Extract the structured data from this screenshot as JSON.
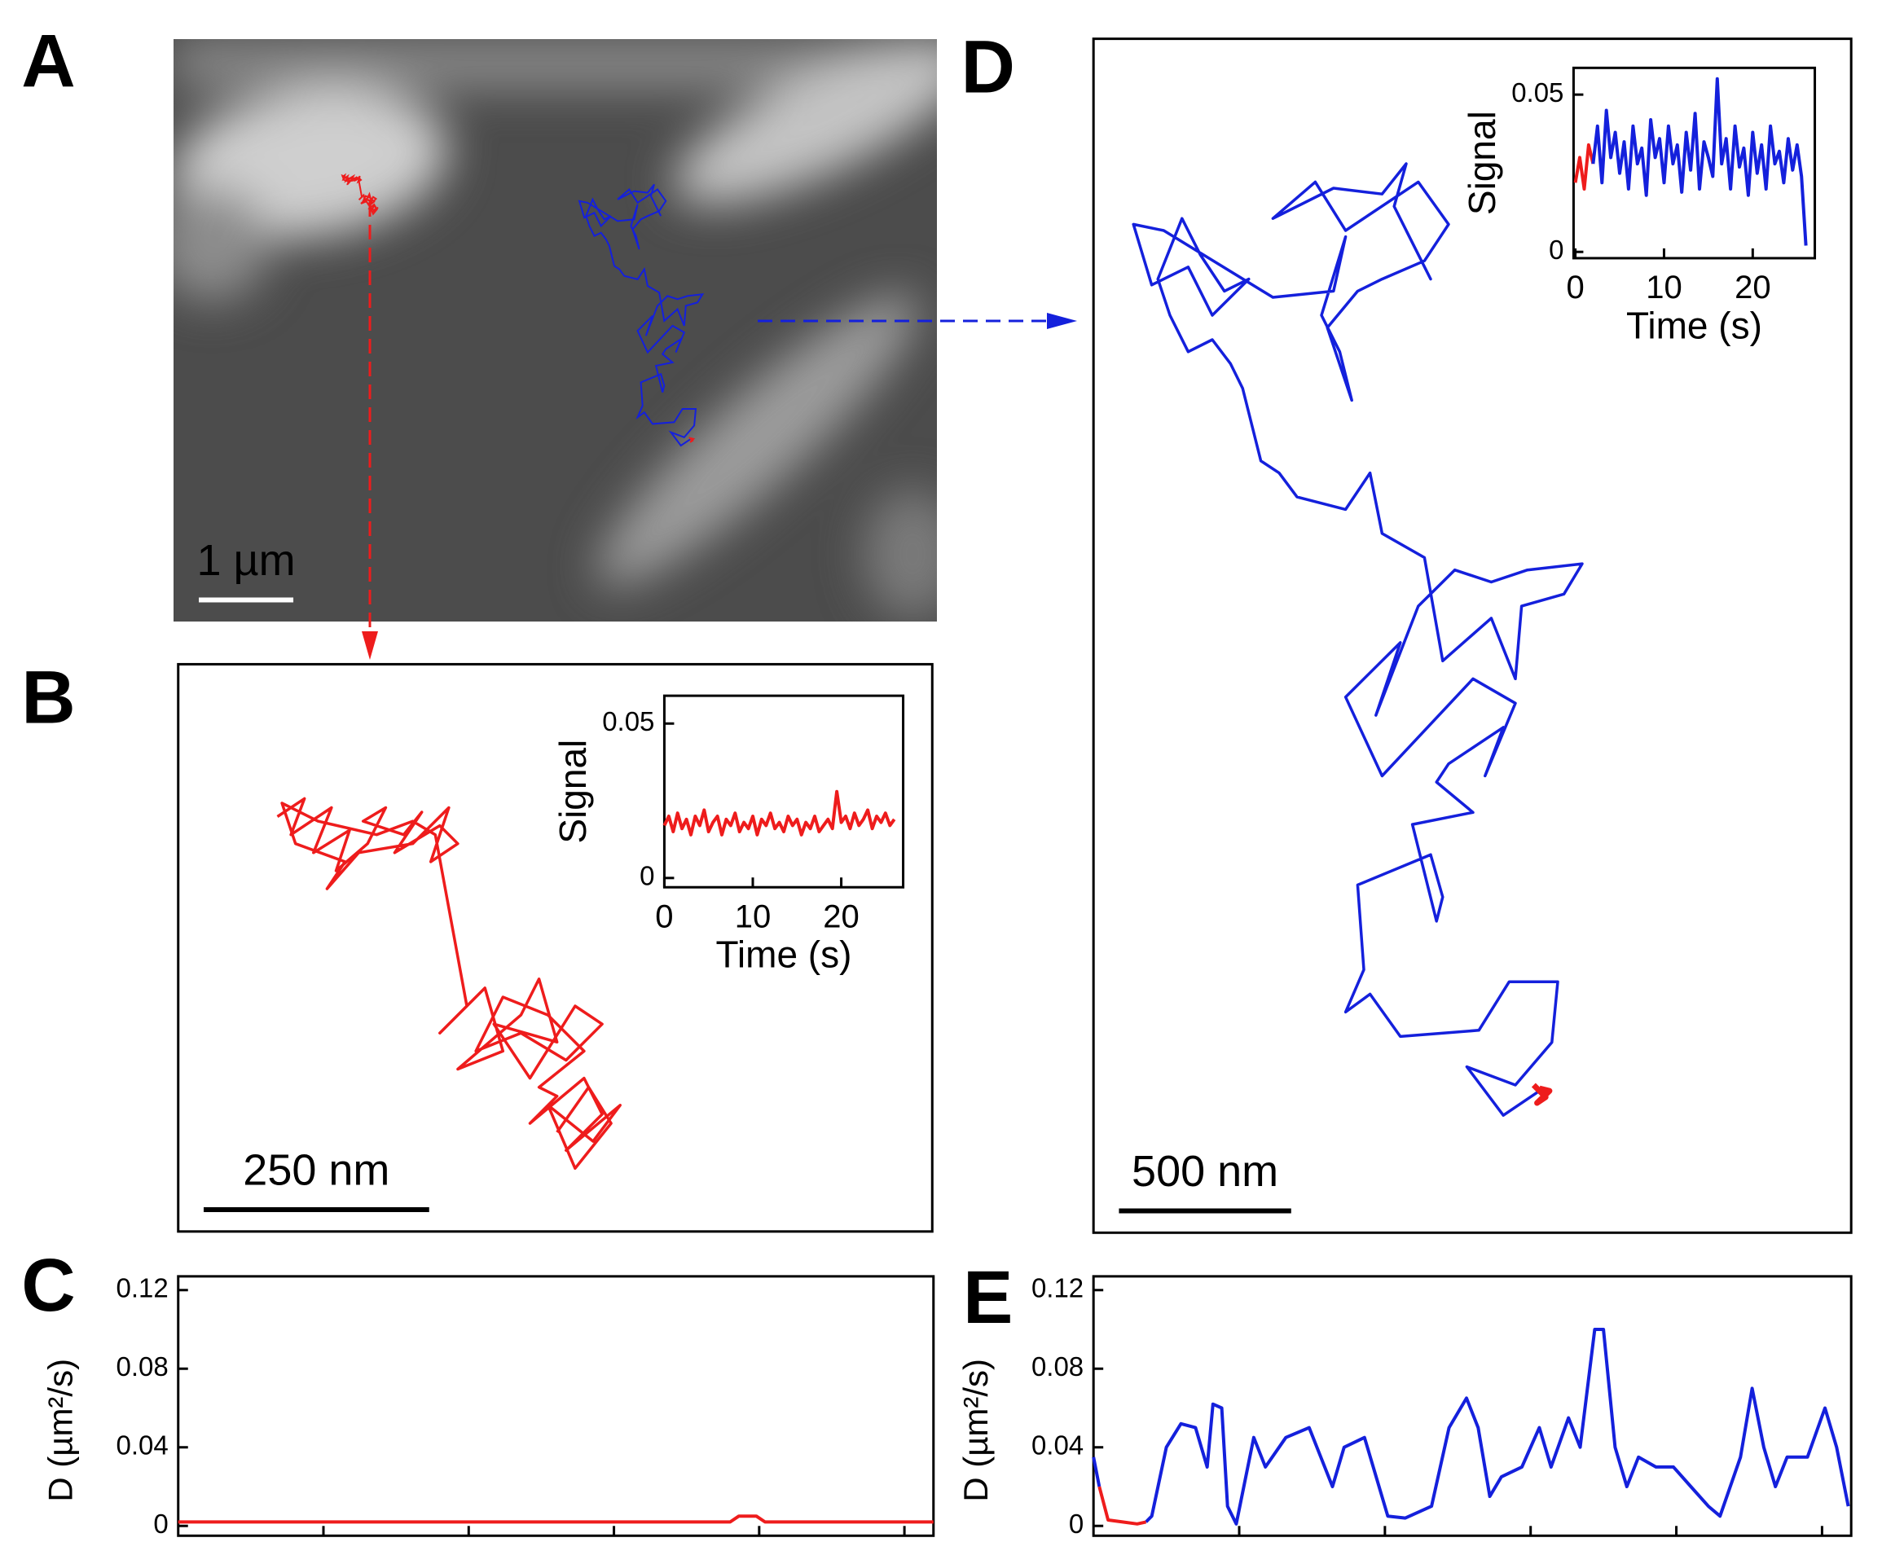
{
  "chart_data": [
    {
      "type": "image",
      "panel_label": "A",
      "xlim": [
        0,
        8080
      ],
      "ylim": [
        0,
        6170
      ],
      "scale_bar": {
        "value": 1000,
        "label": "1 µm"
      }
    },
    {
      "type": "trajectory",
      "panel_label": "B",
      "xlim": [
        0,
        836
      ],
      "ylim": [
        0,
        629
      ],
      "scale_bar": {
        "value": 250,
        "label": "250 nm"
      },
      "series": [
        {
          "color": "#ee1c1c",
          "x": [
            110,
            140,
            125,
            170,
            150,
            190,
            175,
            210,
            230,
            205,
            250,
            270,
            240,
            290,
            310,
            280,
            300,
            260,
            200,
            165,
            185,
            130,
            115,
            155,
            220,
            260,
            285,
            320,
            290,
            340,
            360,
            310,
            380,
            400,
            420,
            350,
            390,
            440,
            470,
            430,
            380,
            330,
            360,
            410,
            450,
            400,
            420,
            390,
            450,
            470,
            430,
            490,
            460,
            410,
            440,
            480,
            455,
            420
          ],
          "y": [
            460,
            480,
            440,
            470,
            420,
            445,
            400,
            430,
            470,
            455,
            440,
            465,
            420,
            450,
            430,
            410,
            470,
            430,
            420,
            380,
            410,
            430,
            475,
            455,
            440,
            455,
            440,
            250,
            220,
            270,
            200,
            180,
            240,
            280,
            210,
            230,
            170,
            250,
            230,
            190,
            220,
            200,
            260,
            240,
            200,
            160,
            150,
            120,
            170,
            130,
            90,
            140,
            100,
            140,
            70,
            120,
            160,
            110
          ]
        }
      ]
    },
    {
      "type": "line",
      "xlabel": "Time (s)",
      "ylabel": "Signal",
      "xlim": [
        0,
        27
      ],
      "ylim": [
        -0.003,
        0.059
      ],
      "xticks": [
        0,
        10,
        20
      ],
      "yticks": [
        0,
        0.05
      ],
      "series": [
        {
          "color": "#ee1c1c",
          "x": [
            0,
            0.5,
            1,
            1.5,
            2,
            2.5,
            3,
            3.5,
            4,
            4.5,
            5,
            5.5,
            6,
            6.5,
            7,
            7.5,
            8,
            8.5,
            9,
            9.5,
            10,
            10.5,
            11,
            11.5,
            12,
            12.5,
            13,
            13.5,
            14,
            14.5,
            15,
            15.5,
            16,
            16.5,
            17,
            17.5,
            18,
            18.5,
            19,
            19.5,
            20,
            20.5,
            21,
            21.5,
            22,
            22.5,
            23,
            23.5,
            24,
            24.5,
            25,
            25.5,
            26
          ],
          "values": [
            0.017,
            0.02,
            0.015,
            0.021,
            0.016,
            0.019,
            0.014,
            0.02,
            0.017,
            0.022,
            0.015,
            0.018,
            0.02,
            0.014,
            0.019,
            0.017,
            0.021,
            0.015,
            0.018,
            0.016,
            0.02,
            0.014,
            0.019,
            0.017,
            0.021,
            0.016,
            0.018,
            0.015,
            0.02,
            0.017,
            0.019,
            0.014,
            0.018,
            0.016,
            0.02,
            0.015,
            0.017,
            0.019,
            0.016,
            0.028,
            0.018,
            0.02,
            0.016,
            0.021,
            0.017,
            0.019,
            0.022,
            0.016,
            0.02,
            0.018,
            0.021,
            0.017,
            0.019
          ]
        }
      ]
    },
    {
      "type": "trajectory",
      "panel_label": "D",
      "xlim": [
        0,
        2200
      ],
      "ylim": [
        0,
        3468
      ],
      "scale_bar": {
        "value": 500,
        "label": "500 nm"
      },
      "series": [
        {
          "color": "#1420dc",
          "x": [
            1295,
            1190,
            1084,
            1225,
            1331,
            1348,
            1207,
            1119,
            891,
            803,
            732,
            785,
            767,
            979,
            1014,
            996,
            926,
            1102,
            996,
            1031,
            1190,
            1137,
            1225,
            1102,
            838,
            732,
            891,
            820,
            943,
            1049,
            1155,
            1260,
            1419,
            1366,
            1243,
            1225,
            1155,
            1014,
            961,
            838,
            803,
            732,
            591,
            539,
            486,
            433,
            398,
            345,
            275,
            222,
            187,
            257,
            310,
            380,
            451,
            345,
            275,
            169,
            116,
            204,
            521,
            697,
            732,
            662,
            715,
            750,
            679,
            767,
            838,
            961,
            1031,
            943,
            732,
            644,
            521,
            697,
            838,
            908,
            873,
            979,
            908
          ],
          "y": [
            412,
            341,
            482,
            429,
            553,
            729,
            729,
            588,
            570,
            693,
            641,
            764,
            1010,
            1098,
            975,
            905,
            1186,
            1221,
            1309,
            1362,
            1468,
            1327,
            1538,
            1609,
            1327,
            1556,
            1714,
            1503,
            1820,
            1925,
            1890,
            1925,
            1943,
            1855,
            1820,
            1609,
            1785,
            1661,
            1961,
            2031,
            2207,
            2101,
            2137,
            2207,
            2242,
            2453,
            2524,
            2594,
            2559,
            2665,
            2770,
            2946,
            2841,
            2735,
            2770,
            2665,
            2805,
            2753,
            2929,
            2911,
            2717,
            2735,
            2893,
            2665,
            2559,
            2418,
            2629,
            2735,
            2770,
            2823,
            2929,
            3052,
            2911,
            3052,
            2946,
            3034,
            3017,
            3105,
            2981,
            2770,
            2911
          ]
        },
        {
          "color": "#ee1c1c",
          "x": [
            1278,
            1313,
            1288,
            1324,
            1295
          ],
          "y": [
            429,
            394,
            377,
            412,
            419
          ]
        }
      ]
    },
    {
      "type": "line",
      "xlabel": "Time (s)",
      "ylabel": "Signal",
      "xlim": [
        -0.2,
        27
      ],
      "ylim": [
        -0.002,
        0.0585
      ],
      "xticks": [
        0,
        10,
        20
      ],
      "yticks": [
        0,
        0.05
      ],
      "series": [
        {
          "color": "#ee1c1c",
          "x": [
            0,
            0.5,
            1,
            1.5,
            2
          ],
          "values": [
            0.022,
            0.03,
            0.02,
            0.034,
            0.028
          ]
        },
        {
          "color": "#1420dc",
          "x": [
            2,
            2.5,
            3,
            3.5,
            4,
            4.5,
            5,
            5.5,
            6,
            6.5,
            7,
            7.5,
            8,
            8.5,
            9,
            9.5,
            10,
            10.5,
            11,
            11.5,
            12,
            12.5,
            13,
            13.5,
            14,
            14.5,
            15,
            15.5,
            16,
            16.5,
            17,
            17.5,
            18,
            18.5,
            19,
            19.5,
            20,
            20.5,
            21,
            21.5,
            22,
            22.5,
            23,
            23.5,
            24,
            24.5,
            25,
            25.5,
            26
          ],
          "values": [
            0.028,
            0.04,
            0.022,
            0.045,
            0.03,
            0.038,
            0.025,
            0.035,
            0.02,
            0.04,
            0.028,
            0.033,
            0.018,
            0.042,
            0.03,
            0.036,
            0.022,
            0.04,
            0.028,
            0.034,
            0.019,
            0.038,
            0.026,
            0.044,
            0.02,
            0.035,
            0.03,
            0.024,
            0.055,
            0.028,
            0.036,
            0.02,
            0.04,
            0.027,
            0.033,
            0.018,
            0.038,
            0.025,
            0.034,
            0.02,
            0.04,
            0.028,
            0.032,
            0.022,
            0.036,
            0.026,
            0.034,
            0.024,
            0.002
          ]
        }
      ]
    },
    {
      "type": "line",
      "panel_label": "C",
      "ylabel": "D (µm²/s)",
      "xlim": [
        0,
        26
      ],
      "ylim": [
        -0.005,
        0.127
      ],
      "xticks": [
        5,
        10,
        15,
        20,
        25
      ],
      "yticks": [
        0,
        0.04,
        0.08,
        0.12
      ],
      "series": [
        {
          "color": "#ee1c1c",
          "x": [
            0,
            5,
            10,
            15,
            19,
            19.3,
            19.9,
            20.2,
            25,
            26
          ],
          "values": [
            0.002,
            0.002,
            0.002,
            0.002,
            0.002,
            0.005,
            0.005,
            0.002,
            0.002,
            0.002
          ]
        }
      ]
    },
    {
      "type": "line",
      "panel_label": "E",
      "ylabel": "D (µm²/s)",
      "xlim": [
        0,
        26
      ],
      "ylim": [
        -0.005,
        0.127
      ],
      "xticks": [
        5,
        10,
        15,
        20,
        25
      ],
      "yticks": [
        0,
        0.04,
        0.08,
        0.12
      ],
      "series": [
        {
          "color": "#1420dc",
          "x": [
            0,
            0.2,
            0.5,
            1,
            1.5,
            1.8,
            2,
            2.5,
            3,
            3.5,
            3.9,
            4.1,
            4.4,
            4.6,
            4.9,
            5.5,
            5.9,
            6.6,
            7.4,
            7.8,
            8.2,
            8.6,
            9.3,
            9.7,
            10.1,
            10.7,
            11.6,
            12.2,
            12.8,
            13.2,
            13.6,
            14,
            14.7,
            15.3,
            15.7,
            16.3,
            16.7,
            17.2,
            17.5,
            17.9,
            18.3,
            18.7,
            19.3,
            19.9,
            20.5,
            21.1,
            21.5,
            22.2,
            22.6,
            23,
            23.4,
            23.8,
            24.5,
            25.1,
            25.5,
            25.9
          ],
          "values": [
            0.035,
            0.02,
            null,
            null,
            null,
            0.002,
            0.005,
            0.04,
            0.052,
            0.05,
            0.03,
            0.062,
            0.06,
            0.01,
            0.001,
            0.045,
            0.03,
            0.045,
            0.05,
            0.035,
            0.02,
            0.04,
            0.045,
            0.025,
            0.005,
            0.004,
            0.01,
            0.05,
            0.065,
            0.05,
            0.015,
            0.025,
            0.03,
            0.05,
            0.03,
            0.055,
            0.04,
            0.1,
            0.1,
            0.04,
            0.02,
            0.035,
            0.03,
            0.03,
            0.02,
            0.01,
            0.005,
            0.035,
            0.07,
            0.04,
            0.02,
            0.035,
            0.035,
            0.06,
            0.04,
            0.01
          ]
        },
        {
          "color": "#ee1c1c",
          "x": [
            0.2,
            0.5,
            1,
            1.5,
            1.8
          ],
          "values": [
            0.02,
            0.003,
            0.002,
            0.001,
            0.002
          ]
        }
      ]
    }
  ]
}
